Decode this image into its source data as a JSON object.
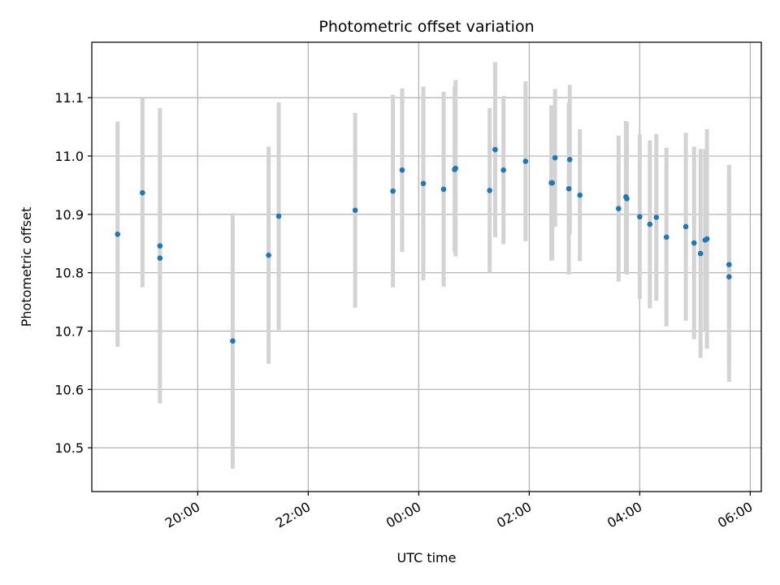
{
  "chart_data": {
    "type": "scatter",
    "title": "Photometric offset variation",
    "xlabel": "UTC time",
    "ylabel": "Photometric offset",
    "grid": true,
    "xlim": [
      "18:05",
      "06:12"
    ],
    "ylim": [
      10.425,
      11.195
    ],
    "x_ticks": [
      "20:00",
      "22:00",
      "00:00",
      "02:00",
      "04:00",
      "06:00"
    ],
    "y_ticks": [
      "10.5",
      "10.6",
      "10.7",
      "10.8",
      "10.9",
      "11.0",
      "11.1"
    ],
    "colors": {
      "point": "#1f77b4",
      "errorbar": "#d3d3d3",
      "grid": "#b0b0b0"
    },
    "points": [
      {
        "x": "18:33",
        "y": 10.866,
        "err": 0.193
      },
      {
        "x": "19:00",
        "y": 10.937,
        "err": 0.162
      },
      {
        "x": "19:19",
        "y": 10.846,
        "err": 0.236
      },
      {
        "x": "19:19",
        "y": 10.825,
        "err": 0.249
      },
      {
        "x": "20:38",
        "y": 10.683,
        "err": 0.219
      },
      {
        "x": "21:17",
        "y": 10.83,
        "err": 0.186
      },
      {
        "x": "21:28",
        "y": 10.897,
        "err": 0.195
      },
      {
        "x": "22:51",
        "y": 10.907,
        "err": 0.167
      },
      {
        "x": "23:32",
        "y": 10.94,
        "err": 0.165
      },
      {
        "x": "23:42",
        "y": 10.976,
        "err": 0.14
      },
      {
        "x": "00:05",
        "y": 10.953,
        "err": 0.166
      },
      {
        "x": "00:27",
        "y": 10.943,
        "err": 0.167
      },
      {
        "x": "00:39",
        "y": 10.977,
        "err": 0.142
      },
      {
        "x": "00:40",
        "y": 10.979,
        "err": 0.151
      },
      {
        "x": "01:17",
        "y": 10.941,
        "err": 0.141
      },
      {
        "x": "01:23",
        "y": 11.011,
        "err": 0.15
      },
      {
        "x": "01:32",
        "y": 10.976,
        "err": 0.127
      },
      {
        "x": "01:56",
        "y": 10.991,
        "err": 0.137
      },
      {
        "x": "02:24",
        "y": 10.954,
        "err": 0.133
      },
      {
        "x": "02:25",
        "y": 10.954,
        "err": 0.133
      },
      {
        "x": "02:28",
        "y": 10.997,
        "err": 0.118
      },
      {
        "x": "02:43",
        "y": 10.944,
        "err": 0.147
      },
      {
        "x": "02:44",
        "y": 10.994,
        "err": 0.128
      },
      {
        "x": "02:55",
        "y": 10.933,
        "err": 0.113
      },
      {
        "x": "03:37",
        "y": 10.91,
        "err": 0.125
      },
      {
        "x": "03:45",
        "y": 10.93,
        "err": 0.13
      },
      {
        "x": "03:46",
        "y": 10.927,
        "err": 0.13
      },
      {
        "x": "04:00",
        "y": 10.896,
        "err": 0.141
      },
      {
        "x": "04:11",
        "y": 10.883,
        "err": 0.144
      },
      {
        "x": "04:18",
        "y": 10.895,
        "err": 0.143
      },
      {
        "x": "04:29",
        "y": 10.861,
        "err": 0.153
      },
      {
        "x": "04:50",
        "y": 10.879,
        "err": 0.161
      },
      {
        "x": "04:59",
        "y": 10.851,
        "err": 0.165
      },
      {
        "x": "05:06",
        "y": 10.833,
        "err": 0.179
      },
      {
        "x": "05:11",
        "y": 10.856,
        "err": 0.156
      },
      {
        "x": "05:13",
        "y": 10.858,
        "err": 0.188
      },
      {
        "x": "05:37",
        "y": 10.814,
        "err": 0.171
      },
      {
        "x": "05:37",
        "y": 10.793,
        "err": 0.18
      }
    ]
  }
}
